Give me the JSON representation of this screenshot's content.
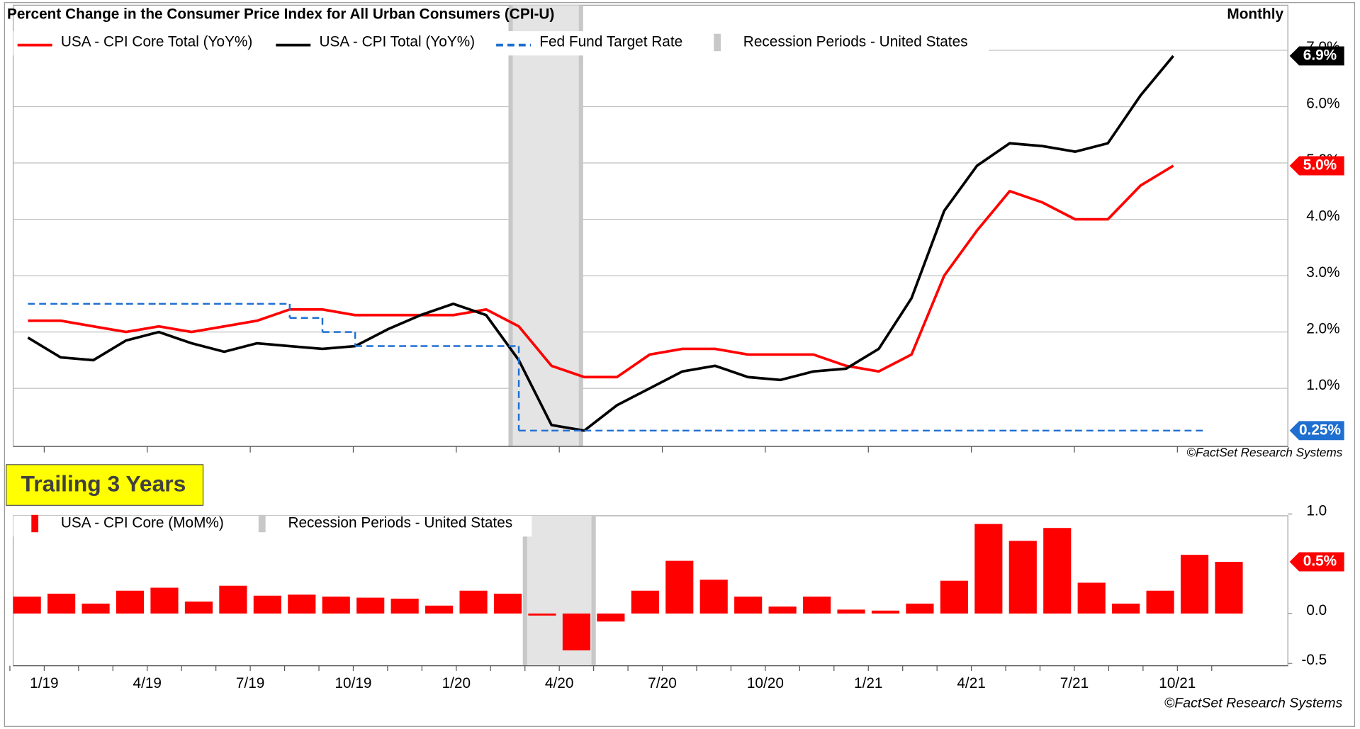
{
  "chart_data": [
    {
      "type": "line",
      "title": "Percent Change in the Consumer Price Index for All Urban Consumers (CPI-U)",
      "period": "Monthly",
      "source": "©FactSet Research Systems",
      "ylim": [
        0,
        7.8
      ],
      "yticks": [
        {
          "value": 1,
          "label": "1.0%"
        },
        {
          "value": 2,
          "label": "2.0%"
        },
        {
          "value": 3,
          "label": "3.0%"
        },
        {
          "value": 4,
          "label": "4.0%"
        },
        {
          "value": 5,
          "label": "5.0%"
        },
        {
          "value": 6,
          "label": "6.0%"
        },
        {
          "value": 7,
          "label": "7.0%"
        }
      ],
      "grid": true,
      "series": [
        {
          "name": "USA - CPI Core Total (YoY%)",
          "color": "#ff0000",
          "values": [
            2.2,
            2.2,
            2.1,
            2.0,
            2.1,
            2.0,
            2.1,
            2.2,
            2.4,
            2.4,
            2.3,
            2.3,
            2.3,
            2.3,
            2.4,
            2.1,
            1.4,
            1.2,
            1.2,
            1.6,
            1.7,
            1.7,
            1.6,
            1.6,
            1.6,
            1.4,
            1.3,
            1.6,
            3.0,
            3.8,
            4.5,
            4.3,
            4.0,
            4.0,
            4.6,
            4.95
          ],
          "value_labels": [
            null,
            null,
            null,
            null,
            null,
            null,
            null,
            null,
            null,
            null,
            null,
            null,
            null,
            null,
            null,
            null,
            null,
            null,
            null,
            null,
            null,
            null,
            null,
            null,
            null,
            null,
            null,
            null,
            null,
            null,
            null,
            null,
            null,
            null,
            null,
            "5.0%"
          ]
        },
        {
          "name": "USA - CPI Total (YoY%)",
          "color": "#000000",
          "values": [
            1.9,
            1.55,
            1.5,
            1.85,
            2.0,
            1.8,
            1.65,
            1.8,
            1.75,
            1.7,
            1.75,
            2.05,
            2.3,
            2.5,
            2.3,
            1.5,
            0.35,
            0.25,
            0.7,
            1.0,
            1.3,
            1.4,
            1.2,
            1.15,
            1.3,
            1.35,
            1.7,
            2.6,
            4.15,
            4.95,
            5.35,
            5.3,
            5.2,
            5.35,
            6.2,
            6.9
          ],
          "value_labels": [
            null,
            null,
            null,
            null,
            null,
            null,
            null,
            null,
            null,
            null,
            null,
            null,
            null,
            null,
            null,
            null,
            null,
            null,
            null,
            null,
            null,
            null,
            null,
            null,
            null,
            null,
            null,
            null,
            null,
            null,
            null,
            null,
            null,
            null,
            null,
            "6.9%"
          ]
        },
        {
          "name": "Fed Fund Target Rate",
          "color": "#1f6fd1",
          "kind": "step",
          "dash": true,
          "values": [
            2.5,
            2.5,
            2.5,
            2.5,
            2.5,
            2.5,
            2.5,
            2.5,
            2.25,
            2.0,
            1.75,
            1.75,
            1.75,
            1.75,
            1.75,
            0.25,
            0.25,
            0.25,
            0.25,
            0.25,
            0.25,
            0.25,
            0.25,
            0.25,
            0.25,
            0.25,
            0.25,
            0.25,
            0.25,
            0.25,
            0.25,
            0.25,
            0.25,
            0.25,
            0.25,
            0.25
          ],
          "value_labels": [
            null,
            null,
            null,
            null,
            null,
            null,
            null,
            null,
            null,
            null,
            null,
            null,
            null,
            null,
            null,
            null,
            null,
            null,
            null,
            null,
            null,
            null,
            null,
            null,
            null,
            null,
            null,
            null,
            null,
            null,
            null,
            null,
            null,
            null,
            null,
            "0.25%"
          ]
        },
        {
          "name": "Recession Periods - United States",
          "color": "#c8c8c8",
          "kind": "band",
          "values": [
            0,
            0,
            0,
            0,
            0,
            0,
            0,
            0,
            0,
            0,
            0,
            0,
            0,
            0,
            0,
            1,
            1,
            0,
            0,
            0,
            0,
            0,
            0,
            0,
            0,
            0,
            0,
            0,
            0,
            0,
            0,
            0,
            0,
            0,
            0,
            0
          ]
        }
      ]
    },
    {
      "type": "bar",
      "title": "Trailing 3 Years",
      "source": "©FactSet Research Systems",
      "categories": [
        null,
        "1/19",
        null,
        null,
        "4/19",
        null,
        null,
        "7/19",
        null,
        null,
        "10/19",
        null,
        null,
        "1/20",
        null,
        null,
        "4/20",
        null,
        null,
        "7/20",
        null,
        null,
        "10/20",
        null,
        null,
        "1/21",
        null,
        null,
        "4/21",
        null,
        null,
        "7/21",
        null,
        null,
        "10/21",
        null
      ],
      "ylim": [
        -0.55,
        1.0
      ],
      "yticks": [
        {
          "value": 1,
          "label": "1.0"
        },
        {
          "value": 0,
          "label": "0.0"
        },
        -0.5
      ],
      "series": [
        {
          "name": "USA - CPI Core (MoM%)",
          "color": "#ff0000",
          "values": [
            0.17,
            0.2,
            0.1,
            0.23,
            0.26,
            0.12,
            0.28,
            0.18,
            0.19,
            0.17,
            0.16,
            0.15,
            0.08,
            0.23,
            0.2,
            -0.02,
            -0.37,
            -0.08,
            0.23,
            0.53,
            0.34,
            0.17,
            0.07,
            0.17,
            0.04,
            0.03,
            0.1,
            0.33,
            0.9,
            0.73,
            0.86,
            0.31,
            0.1,
            0.23,
            0.59,
            0.52
          ],
          "value_labels": [
            null,
            null,
            null,
            null,
            null,
            null,
            null,
            null,
            null,
            null,
            null,
            null,
            null,
            null,
            null,
            null,
            null,
            null,
            null,
            null,
            null,
            null,
            null,
            null,
            null,
            null,
            null,
            null,
            null,
            null,
            null,
            null,
            null,
            null,
            null,
            "0.5%"
          ]
        },
        {
          "name": "Recession Periods - United States",
          "color": "#c8c8c8",
          "kind": "band",
          "values": [
            0,
            0,
            0,
            0,
            0,
            0,
            0,
            0,
            0,
            0,
            0,
            0,
            0,
            0,
            0,
            1,
            1,
            0,
            0,
            0,
            0,
            0,
            0,
            0,
            0,
            0,
            0,
            0,
            0,
            0,
            0,
            0,
            0,
            0,
            0,
            0
          ]
        }
      ]
    }
  ]
}
